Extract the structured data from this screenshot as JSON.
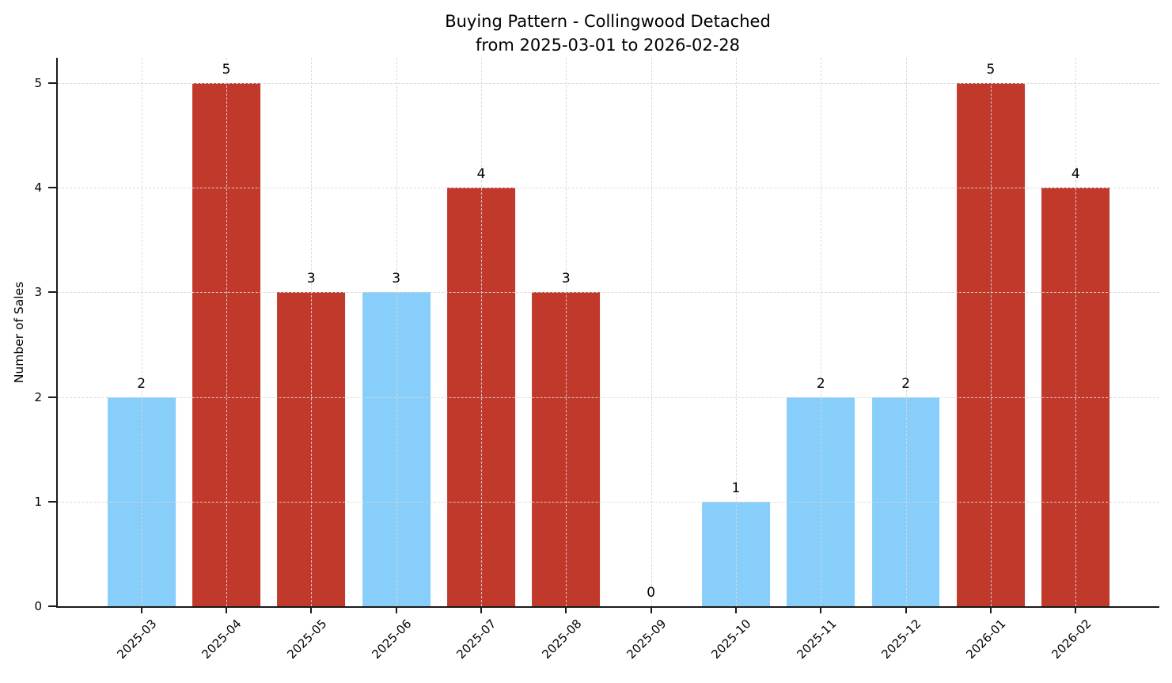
{
  "chart_data": {
    "type": "bar",
    "title": "Buying Pattern - Collingwood Detached",
    "subtitle": "from 2025-03-01 to 2026-02-28",
    "xlabel": "",
    "ylabel": "Number of Sales",
    "categories": [
      "2025-03",
      "2025-04",
      "2025-05",
      "2025-06",
      "2025-07",
      "2025-08",
      "2025-09",
      "2025-10",
      "2025-11",
      "2025-12",
      "2026-01",
      "2026-02"
    ],
    "values": [
      2,
      5,
      3,
      3,
      4,
      3,
      0,
      1,
      2,
      2,
      5,
      4
    ],
    "bar_colors": [
      "#87CEFA",
      "#C0392B",
      "#C0392B",
      "#87CEFA",
      "#C0392B",
      "#C0392B",
      "#87CEFA",
      "#87CEFA",
      "#87CEFA",
      "#87CEFA",
      "#C0392B",
      "#C0392B"
    ],
    "value_labels": [
      "2",
      "5",
      "3",
      "3",
      "4",
      "3",
      "0",
      "1",
      "2",
      "2",
      "5",
      "4"
    ],
    "yticks": [
      0,
      1,
      2,
      3,
      4,
      5
    ],
    "ylim": [
      0,
      5.24
    ],
    "grid": true,
    "grid_style": "dashed",
    "legend_position": "none",
    "colors": {
      "bar_blue": "#87CEFA",
      "bar_red": "#C0392B",
      "axis": "#1a1a1a",
      "grid": "#d7d7d7",
      "text": "#000000",
      "background": "#ffffff"
    }
  }
}
